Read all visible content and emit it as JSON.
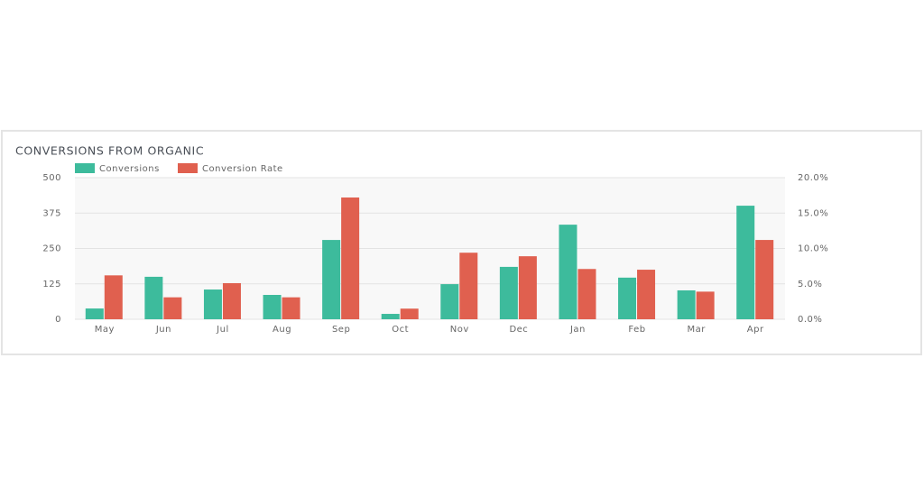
{
  "chart_data": {
    "type": "bar",
    "title": "CONVERSIONS FROM ORGANIC",
    "categories": [
      "May",
      "Jun",
      "Jul",
      "Aug",
      "Sep",
      "Oct",
      "Nov",
      "Dec",
      "Jan",
      "Feb",
      "Mar",
      "Apr"
    ],
    "series": [
      {
        "name": "Conversions",
        "color": "#3dbb9c",
        "values": [
          38,
          150,
          105,
          86,
          280,
          19,
          124,
          185,
          334,
          147,
          102,
          401
        ]
      },
      {
        "name": "Conversion Rate",
        "color": "#e0604f",
        "axis": "y2",
        "values": [
          6.2,
          3.1,
          5.1,
          3.1,
          17.2,
          1.5,
          9.4,
          8.9,
          7.1,
          7.0,
          3.9,
          11.2
        ]
      }
    ],
    "ylim": [
      0,
      500
    ],
    "yticks": [
      0,
      125,
      250,
      375,
      500
    ],
    "y2lim": [
      0,
      20
    ],
    "y2ticks": [
      {
        "value": 0,
        "label": "0.0%"
      },
      {
        "value": 5,
        "label": "5.0%"
      },
      {
        "value": 10,
        "label": "10.0%"
      },
      {
        "value": 15,
        "label": "15.0%"
      },
      {
        "value": 20,
        "label": "20.0%"
      }
    ],
    "grid": true,
    "legend": "top-left"
  }
}
